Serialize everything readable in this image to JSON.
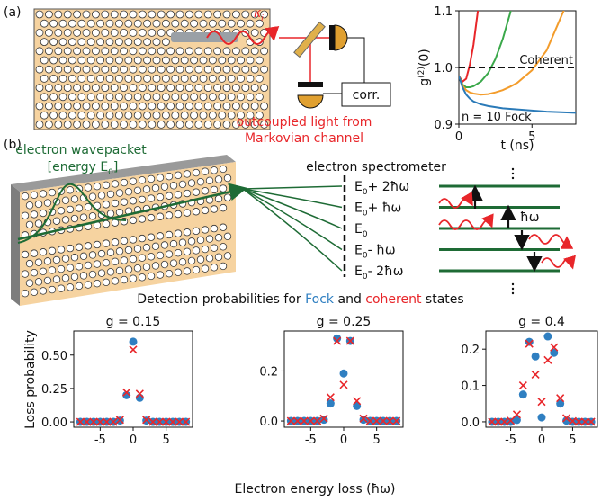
{
  "panel_labels": [
    "(a)",
    "(b)"
  ],
  "diagram": {
    "kappa": "κ",
    "kappa_sub": "i",
    "corr": "corr.",
    "outcoupled": [
      "outcoupled light from",
      "Markovian channel"
    ],
    "wavepacket": "electron wavepacket",
    "energy": {
      "open": "[energy E",
      "sub": "0",
      "close": "]"
    },
    "spectrometer": "electron spectrometer",
    "levels": [
      {
        "main": "E",
        "sub": "0",
        "shift": "+ 2ħω"
      },
      {
        "main": "E",
        "sub": "0",
        "shift": "+ ħω"
      },
      {
        "main": "E",
        "sub": "0"
      },
      {
        "main": "E",
        "sub": "0",
        "shift": "- ħω"
      },
      {
        "main": "E",
        "sub": "0",
        "shift": "- 2ħω"
      }
    ],
    "quantum": "ħω",
    "detection": [
      "Detection probabilities for ",
      "Fock",
      " and ",
      "coherent",
      " states"
    ],
    "fock_color": "#2f7fc1",
    "coherent_color": "#e8262a"
  },
  "chart_data": [
    {
      "type": "line",
      "ylabel": [
        "g",
        "(2)",
        "(0)"
      ],
      "xlabel": "t (ns)",
      "x": [
        0,
        0.25,
        0.5,
        0.75,
        1,
        1.5,
        2,
        2.5,
        3,
        3.5,
        4,
        5,
        6,
        7,
        8
      ],
      "series": [
        {
          "color": "#e8262a",
          "values": [
            0.985,
            0.975,
            0.98,
            1.005,
            1.04,
            1.14,
            null,
            null,
            null,
            null,
            null,
            null,
            null,
            null,
            null
          ]
        },
        {
          "color": "#3aa84a",
          "values": [
            0.985,
            0.97,
            0.965,
            0.965,
            0.967,
            0.975,
            0.99,
            1.015,
            1.05,
            1.095,
            1.15,
            null,
            null,
            null,
            null
          ]
        },
        {
          "color": "#f39c2b",
          "values": [
            0.985,
            0.968,
            0.96,
            0.956,
            0.954,
            0.952,
            0.953,
            0.956,
            0.96,
            0.966,
            0.973,
            0.995,
            1.03,
            1.09,
            1.15
          ]
        },
        {
          "color": "#2a7ab8",
          "values": [
            0.985,
            0.965,
            0.952,
            0.945,
            0.94,
            0.935,
            0.932,
            0.93,
            0.928,
            0.927,
            0.926,
            0.924,
            0.922,
            0.921,
            0.92
          ]
        }
      ],
      "reference_line": {
        "value": 1,
        "label": "Coherent"
      },
      "annotation": "n = 10 Fock",
      "xlim": [
        0,
        8
      ],
      "xticks": [
        0,
        5
      ],
      "ylim": [
        0.9,
        1.1
      ],
      "yticks": [
        0.9,
        {
          "value": 1,
          "label": "1.0"
        },
        1.1
      ]
    },
    {
      "type": "scatter",
      "title": "g = 0.15",
      "ylabel": "Loss probability",
      "x": [
        -8,
        -7,
        -6,
        -5,
        -4,
        -3,
        -2,
        -1,
        0,
        1,
        2,
        3,
        4,
        5,
        6,
        7,
        8
      ],
      "series": [
        {
          "marker": "circle",
          "color": "#2f7fc1",
          "values": [
            0,
            0,
            0,
            0,
            0,
            0,
            0.01,
            0.2,
            0.6,
            0.18,
            0.01,
            0,
            0,
            0,
            0,
            0,
            0
          ]
        },
        {
          "marker": "x",
          "color": "#e8262a",
          "values": [
            0,
            0,
            0,
            0,
            0,
            0,
            0.015,
            0.22,
            0.54,
            0.21,
            0.015,
            0,
            0,
            0,
            0,
            0,
            0
          ]
        }
      ],
      "xlim": [
        -9,
        9
      ],
      "xticks": [
        -5,
        0,
        5
      ],
      "ylim": [
        -0.04,
        0.68
      ],
      "yticks": [
        {
          "value": 0,
          "label": "0.00"
        },
        {
          "value": 0.25,
          "label": "0.25"
        },
        {
          "value": 0.5,
          "label": "0.50"
        }
      ]
    },
    {
      "type": "scatter",
      "title": "g = 0.25",
      "xlabel": "Electron energy loss (ħω)",
      "x": [
        -8,
        -7,
        -6,
        -5,
        -4,
        -3,
        -2,
        -1,
        0,
        1,
        2,
        3,
        4,
        5,
        6,
        7,
        8
      ],
      "series": [
        {
          "marker": "circle",
          "color": "#2f7fc1",
          "values": [
            0,
            0,
            0,
            0,
            0,
            0.005,
            0.07,
            0.33,
            0.19,
            0.32,
            0.06,
            0.005,
            0,
            0,
            0,
            0,
            0
          ]
        },
        {
          "marker": "x",
          "color": "#e8262a",
          "values": [
            0,
            0,
            0,
            0,
            0,
            0.01,
            0.095,
            0.32,
            0.145,
            0.32,
            0.08,
            0.01,
            0,
            0,
            0,
            0,
            0
          ]
        }
      ],
      "xlim": [
        -9,
        9
      ],
      "xticks": [
        -5,
        0,
        5
      ],
      "ylim": [
        -0.025,
        0.36
      ],
      "yticks": [
        {
          "value": 0,
          "label": "0.0"
        },
        {
          "value": 0.2,
          "label": "0.2"
        }
      ]
    },
    {
      "type": "scatter",
      "title": "g = 0.4",
      "x": [
        -8,
        -7,
        -6,
        -5,
        -4,
        -3,
        -2,
        -1,
        0,
        1,
        2,
        3,
        4,
        5,
        6,
        7,
        8
      ],
      "series": [
        {
          "marker": "circle",
          "color": "#2f7fc1",
          "values": [
            0,
            0,
            0,
            0,
            0.005,
            0.075,
            0.22,
            0.18,
            0.012,
            0.235,
            0.19,
            0.05,
            0.003,
            0,
            0,
            0,
            0
          ]
        },
        {
          "marker": "x",
          "color": "#e8262a",
          "values": [
            0,
            0,
            0,
            0.003,
            0.02,
            0.1,
            0.215,
            0.13,
            0.055,
            0.17,
            0.205,
            0.065,
            0.01,
            0.002,
            0,
            0,
            0
          ]
        }
      ],
      "xlim": [
        -9,
        9
      ],
      "xticks": [
        -5,
        0,
        5
      ],
      "ylim": [
        -0.015,
        0.25
      ],
      "yticks": [
        {
          "value": 0,
          "label": "0.0"
        },
        {
          "value": 0.1,
          "label": "0.1"
        },
        {
          "value": 0.2,
          "label": "0.2"
        }
      ]
    }
  ]
}
